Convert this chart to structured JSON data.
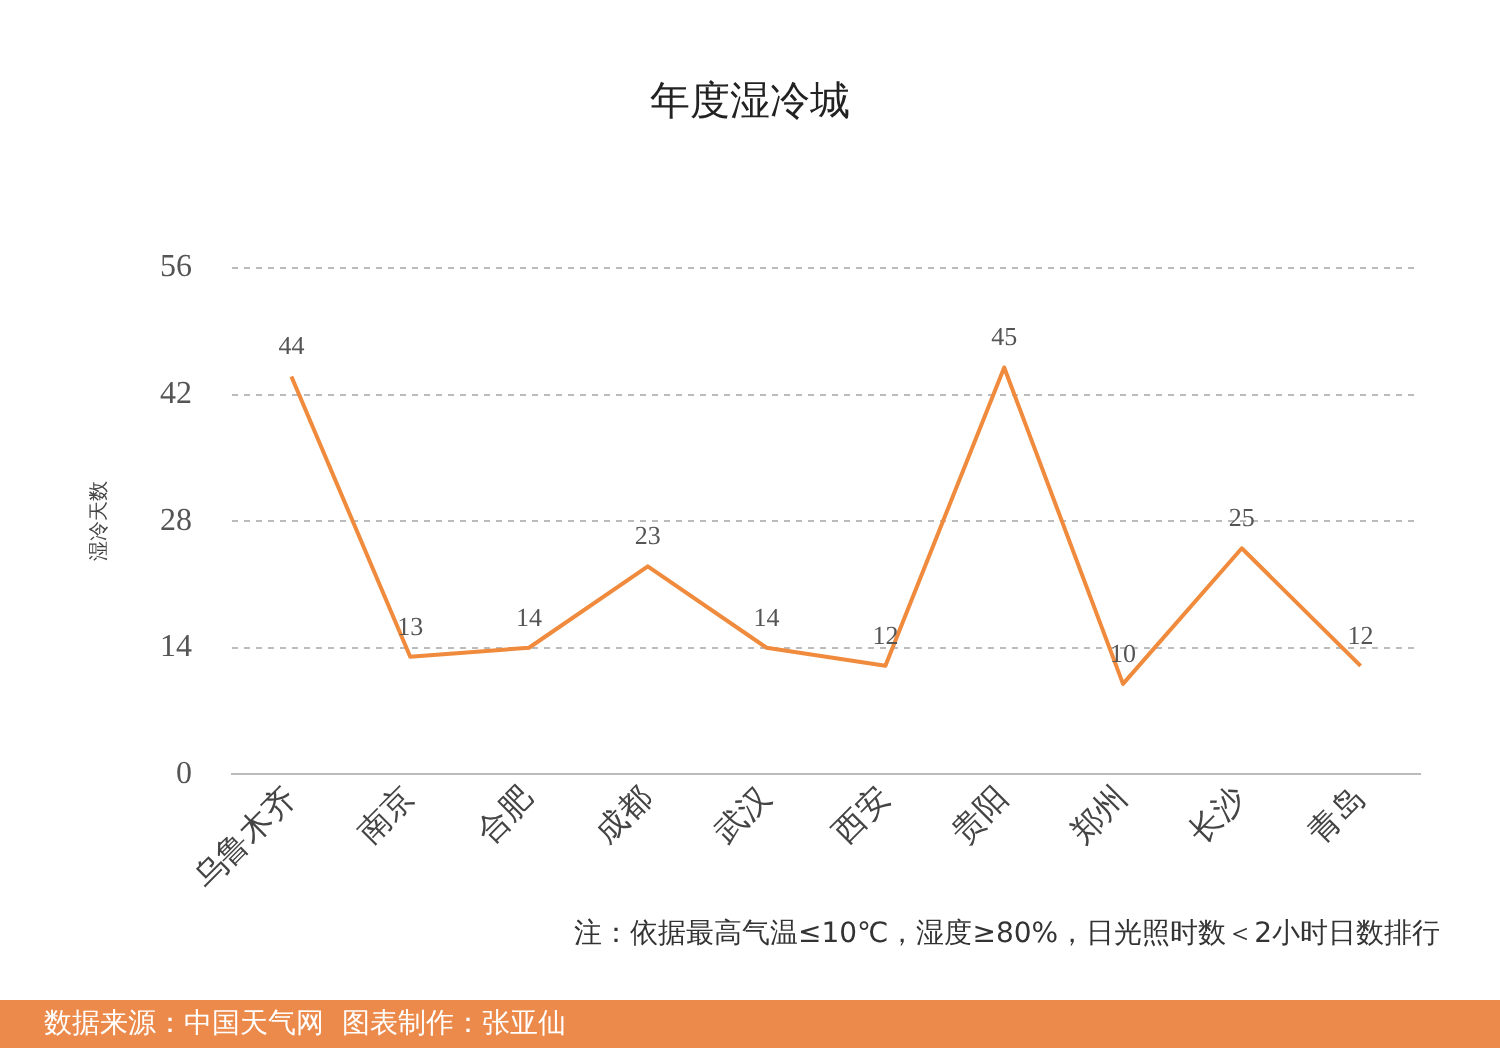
{
  "chart_data": {
    "type": "line",
    "title": "年度湿冷城",
    "ylabel": "湿冷天数",
    "categories": [
      "乌鲁木齐",
      "南京",
      "合肥",
      "成都",
      "武汉",
      "西安",
      "贵阳",
      "郑州",
      "长沙",
      "青岛"
    ],
    "series": [
      {
        "color": "#f08a3c",
        "values": [
          44,
          13,
          14,
          23,
          14,
          12,
          45,
          10,
          25,
          12
        ]
      }
    ],
    "ylim": [
      0,
      56
    ],
    "yticks": [
      0,
      14,
      28,
      42,
      56
    ],
    "grid": "y",
    "legend": false,
    "marker": "none",
    "line_style": "solid",
    "data_labels": true,
    "annotations": [
      "注：依据最高气温≤10℃，湿度≥80%，日光照时数＜2小时日数排行",
      "数据来源：中国天气网  图表制作：张亚仙"
    ]
  }
}
